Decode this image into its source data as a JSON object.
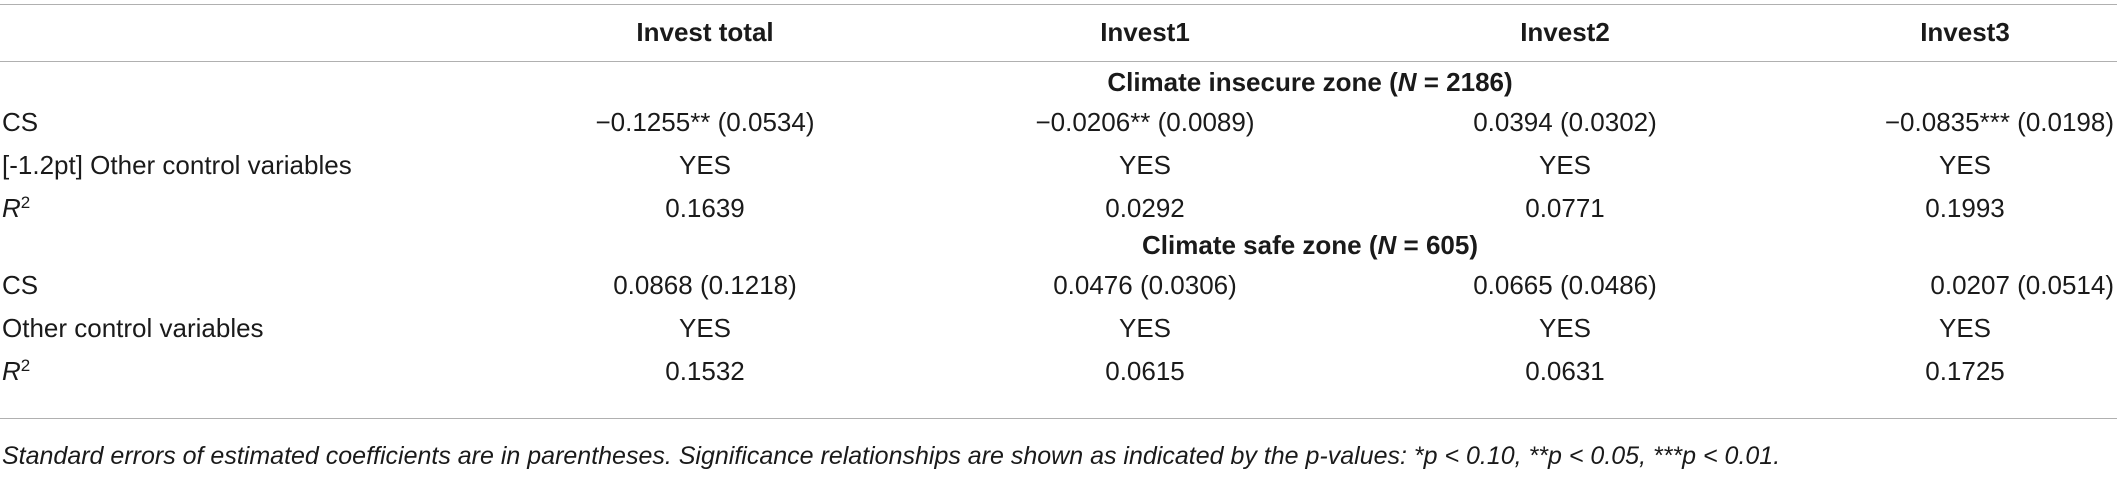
{
  "header": {
    "col1": "Invest total",
    "col2": "Invest1",
    "col3": "Invest2",
    "col4": "Invest3"
  },
  "section1": {
    "title_prefix": "Climate insecure zone (",
    "title_n": "N",
    "title_suffix": " = 2186)",
    "rows": [
      {
        "label": "CS",
        "v1": "−0.1255** (0.0534)",
        "v2": "−0.0206** (0.0089)",
        "v3": "0.0394 (0.0302)",
        "v4": "−0.0835*** (0.0198)"
      },
      {
        "label": "[-1.2pt] Other control variables",
        "v1": "YES",
        "v2": "YES",
        "v3": "YES",
        "v4": "YES"
      },
      {
        "label_base": "R",
        "label_sup": "2",
        "v1": "0.1639",
        "v2": "0.0292",
        "v3": "0.0771",
        "v4": "0.1993"
      }
    ]
  },
  "section2": {
    "title_prefix": "Climate safe zone (",
    "title_n": "N",
    "title_suffix": " = 605)",
    "rows": [
      {
        "label": "CS",
        "v1": "0.0868 (0.1218)",
        "v2": "0.0476 (0.0306)",
        "v3": "0.0665 (0.0486)",
        "v4": "0.0207 (0.0514)"
      },
      {
        "label": "Other control variables",
        "v1": "YES",
        "v2": "YES",
        "v3": "YES",
        "v4": "YES"
      },
      {
        "label_base": "R",
        "label_sup": "2",
        "v1": "0.1532",
        "v2": "0.0615",
        "v3": "0.0631",
        "v4": "0.1725"
      }
    ]
  },
  "footnote": "Standard errors of estimated coefficients are in parentheses. Significance relationships are shown as indicated by the p-values: *p < 0.10, **p < 0.05, ***p < 0.01."
}
